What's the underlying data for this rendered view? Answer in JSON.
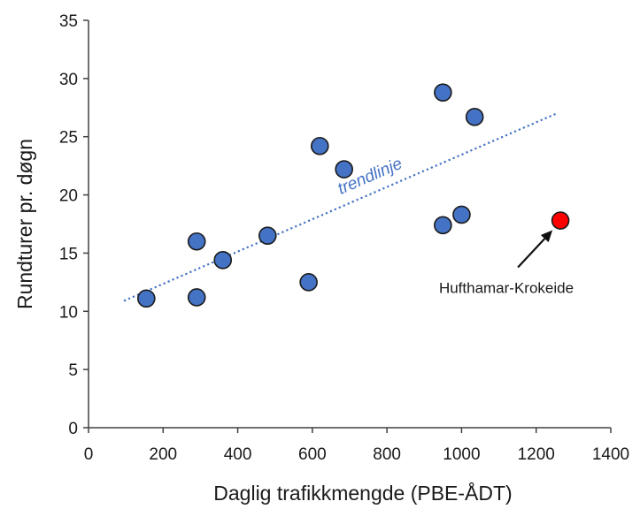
{
  "chart_data": {
    "type": "scatter",
    "xlabel": "Daglig trafikkmengde (PBE-ÅDT)",
    "ylabel": "Rundturer pr. døgn",
    "xlim": [
      0,
      1400
    ],
    "ylim": [
      0,
      35
    ],
    "x_ticks": [
      0,
      200,
      400,
      600,
      800,
      1000,
      1200,
      1400
    ],
    "y_ticks": [
      0,
      5,
      10,
      15,
      20,
      25,
      30,
      35
    ],
    "grid": false,
    "series": [
      {
        "color": "#4472c4",
        "points": [
          {
            "x": 155,
            "y": 11.1
          },
          {
            "x": 290,
            "y": 11.2
          },
          {
            "x": 290,
            "y": 16.0
          },
          {
            "x": 360,
            "y": 14.4
          },
          {
            "x": 480,
            "y": 16.5
          },
          {
            "x": 590,
            "y": 12.5
          },
          {
            "x": 620,
            "y": 24.2
          },
          {
            "x": 685,
            "y": 22.2
          },
          {
            "x": 950,
            "y": 28.8
          },
          {
            "x": 950,
            "y": 17.4
          },
          {
            "x": 1000,
            "y": 18.3
          },
          {
            "x": 1035,
            "y": 26.7
          }
        ]
      },
      {
        "color": "#ff0000",
        "points": [
          {
            "x": 1265,
            "y": 17.8
          }
        ]
      }
    ],
    "trendline": {
      "label": "trendlinje",
      "color": "#4472c4",
      "x_start": 95,
      "y_start": 10.9,
      "x_end": 1255,
      "y_end": 27.0
    },
    "annotations": [
      {
        "text": "Hufthamar-Krokeide",
        "target_x": 1265,
        "target_y": 17.8
      }
    ]
  }
}
